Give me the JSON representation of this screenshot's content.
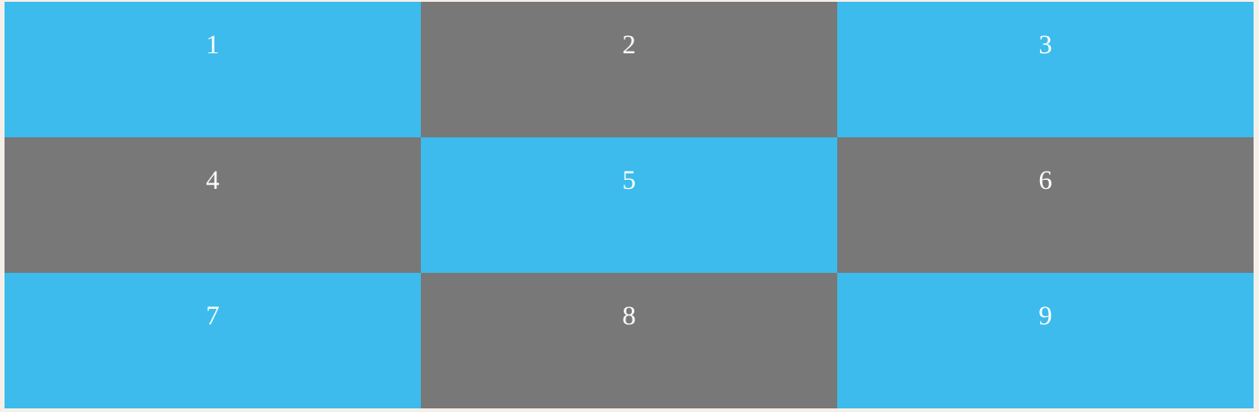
{
  "colors": {
    "blue": "#3cbbec",
    "gray": "#787878",
    "text": "#ffffff"
  },
  "grid": {
    "cells": [
      {
        "label": "1",
        "color": "blue"
      },
      {
        "label": "2",
        "color": "gray"
      },
      {
        "label": "3",
        "color": "blue"
      },
      {
        "label": "4",
        "color": "gray"
      },
      {
        "label": "5",
        "color": "blue"
      },
      {
        "label": "6",
        "color": "gray"
      },
      {
        "label": "7",
        "color": "blue"
      },
      {
        "label": "8",
        "color": "gray"
      },
      {
        "label": "9",
        "color": "blue"
      }
    ]
  }
}
